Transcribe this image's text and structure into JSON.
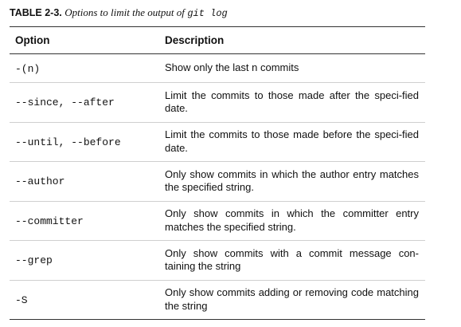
{
  "caption": {
    "label": "TABLE 2-3.",
    "text": "Options to limit the output of",
    "code": "git log"
  },
  "table": {
    "headers": {
      "option": "Option",
      "description": "Description"
    },
    "rows": [
      {
        "option": "-(n)",
        "description": "Show only the last n commits"
      },
      {
        "option": "--since, --after",
        "description": "Limit the commits to those made after the speci-fied date."
      },
      {
        "option": "--until, --before",
        "description": "Limit the commits to those made before the speci-fied date."
      },
      {
        "option": "--author",
        "description": "Only show commits in which the author entry matches the specified string."
      },
      {
        "option": "--committer",
        "description": "Only show commits in which the committer entry matches the specified string."
      },
      {
        "option": "--grep",
        "description": "Only show commits with a commit message con-taining the string"
      },
      {
        "option": "-S",
        "description": "Only show commits adding or removing code matching the string"
      }
    ]
  }
}
